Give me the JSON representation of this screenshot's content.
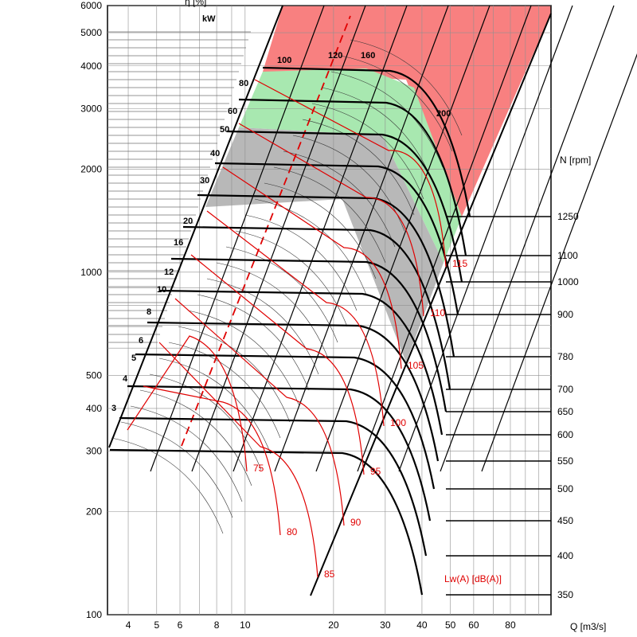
{
  "chart_data": {
    "type": "line",
    "title": "",
    "y_left": {
      "scale": "log",
      "range": [
        100,
        6000
      ],
      "ticks": [
        "100",
        "200",
        "300",
        "400",
        "500",
        "1000",
        "2000",
        "3000",
        "4000",
        "5000",
        "6000"
      ]
    },
    "x": {
      "label": "Q [m3/s]",
      "scale": "log",
      "ticks": [
        "4",
        "5",
        "6",
        "8",
        "10",
        "20",
        "30",
        "40",
        "50",
        "60",
        "80"
      ]
    },
    "speed_axis": {
      "label": "N [rpm]",
      "ticks": [
        "1250",
        "1100",
        "1000",
        "900",
        "780",
        "700",
        "650",
        "600",
        "550",
        "500",
        "450",
        "400",
        "350"
      ]
    },
    "power_unit": "kW",
    "power_labels": [
      "3",
      "4",
      "5",
      "6",
      "8",
      "10",
      "12",
      "16",
      "20",
      "30",
      "40",
      "50",
      "60",
      "80",
      "100",
      "120",
      "160",
      "200"
    ],
    "efficiency_axis_label": "η [%]",
    "noise_label": "Lw(A)  [dB(A)]",
    "noise_curves": [
      "75",
      "80",
      "85",
      "90",
      "95",
      "100",
      "105",
      "110",
      "115"
    ],
    "zones": [
      {
        "name": "red",
        "color": "#f88080"
      },
      {
        "name": "green",
        "color": "#a8e8b0"
      },
      {
        "name": "grey",
        "color": "#b8b8b8"
      }
    ]
  },
  "colors": {
    "line": "#000000",
    "noise": "#e00000",
    "grid": "#606060"
  }
}
